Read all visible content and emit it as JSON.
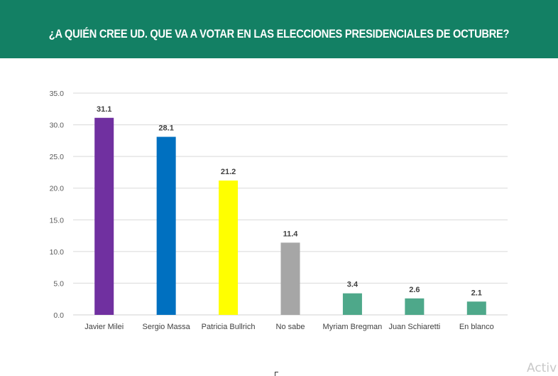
{
  "header": {
    "title": "¿A QUIÉN CREE UD. QUE VA A VOTAR EN LAS ELECCIONES PRESIDENCIALES DE OCTUBRE?"
  },
  "watermark": "Activ",
  "chart_data": {
    "type": "bar",
    "title": "¿A QUIÉN CREE UD. QUE VA A VOTAR EN LAS ELECCIONES PRESIDENCIALES DE OCTUBRE?",
    "xlabel": "",
    "ylabel": "",
    "ylim": [
      0,
      35
    ],
    "yticks": [
      0,
      5,
      10,
      15,
      20,
      25,
      30,
      35
    ],
    "ytick_labels": [
      "0.0",
      "5.0",
      "10.0",
      "15.0",
      "20.0",
      "25.0",
      "30.0",
      "35.0"
    ],
    "grid": true,
    "legend": "none",
    "categories": [
      "Javier Milei",
      "Sergio Massa",
      "Patricia Bullrich",
      "No sabe",
      "Myriam Bregman",
      "Juan Schiaretti",
      "En blanco"
    ],
    "values": [
      31.1,
      28.1,
      21.2,
      11.4,
      3.4,
      2.6,
      2.1
    ],
    "data_labels": [
      "31.1",
      "28.1",
      "21.2",
      "11.4",
      "3.4",
      "2.6",
      "2.1"
    ],
    "colors": [
      "#7030A0",
      "#0070C0",
      "#FFFF00",
      "#A6A6A6",
      "#4EA88A",
      "#4EA88A",
      "#4EA88A"
    ]
  }
}
